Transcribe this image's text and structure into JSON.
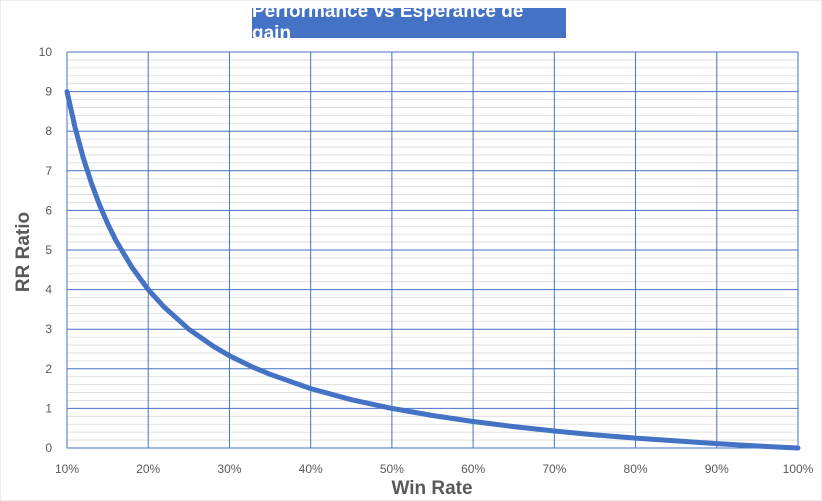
{
  "chart_data": {
    "type": "line",
    "title": "Performance vs Espérance de gain",
    "xlabel": "Win Rate",
    "ylabel": "RR Ratio",
    "xlim": [
      0.1,
      1.0
    ],
    "ylim": [
      0,
      10
    ],
    "x_ticks": [
      "10%",
      "20%",
      "30%",
      "40%",
      "50%",
      "60%",
      "70%",
      "80%",
      "90%",
      "100%"
    ],
    "y_ticks": [
      "0",
      "1",
      "2",
      "3",
      "4",
      "5",
      "6",
      "7",
      "8",
      "9",
      "10"
    ],
    "grid": true,
    "legend": "none",
    "series": [
      {
        "x": [
          0.1,
          0.11,
          0.12,
          0.13,
          0.14,
          0.15,
          0.16,
          0.18,
          0.2,
          0.22,
          0.25,
          0.28,
          0.3,
          0.33,
          0.35,
          0.4,
          0.45,
          0.5,
          0.55,
          0.6,
          0.65,
          0.7,
          0.75,
          0.8,
          0.85,
          0.9,
          0.95,
          1.0
        ],
        "values": [
          9.0,
          8.09,
          7.33,
          6.69,
          6.14,
          5.67,
          5.25,
          4.56,
          4.0,
          3.55,
          3.0,
          2.57,
          2.33,
          2.03,
          1.86,
          1.5,
          1.22,
          1.0,
          0.82,
          0.67,
          0.54,
          0.43,
          0.33,
          0.25,
          0.18,
          0.11,
          0.05,
          0.0
        ]
      }
    ],
    "colors": {
      "line": "#4472C4",
      "major_grid": "#4472C4",
      "minor_grid": "#D9D9D9",
      "title_bg": "#4472C4",
      "axis_text": "#595959"
    }
  }
}
